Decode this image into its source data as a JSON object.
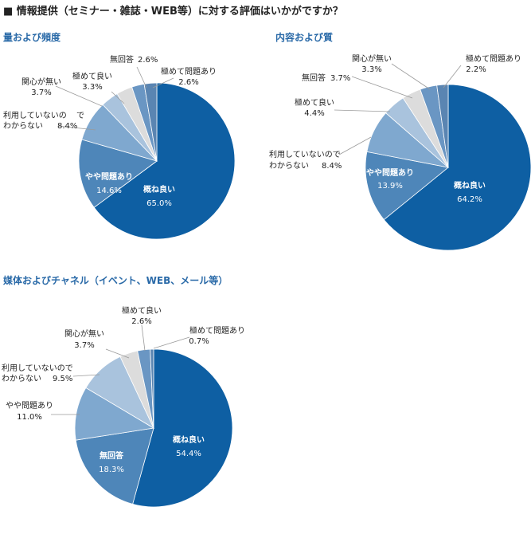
{
  "page_title": "■ 情報提供（セミナー・雑誌・WEB等）に対する評価はいかがですか？",
  "colors": {
    "dark_blue": "#0e5fa3",
    "medium_blue": "#4e86b9",
    "light_blue": "#7fa8cf",
    "pale_blue": "#a9c3dd",
    "light_gray": "#dcdcdc",
    "steel_blue": "#6a96c3",
    "slate_blue": "#5a85b2",
    "title_blue": "#2a6aa8"
  },
  "chart_data": [
    {
      "type": "pie",
      "title": "量および頻度",
      "slices": [
        {
          "name": "概ね良い",
          "value": 65.0,
          "label": "65.0%",
          "color": "#0e5fa3"
        },
        {
          "name": "やや問題あり",
          "value": 14.6,
          "label": "14.6%",
          "color": "#4e86b9"
        },
        {
          "name": "利用していないのでわからない",
          "value": 8.4,
          "label": "8.4%",
          "color": "#7fa8cf"
        },
        {
          "name": "関心が無い",
          "value": 3.7,
          "label": "3.7%",
          "color": "#a9c3dd"
        },
        {
          "name": "極めて良い",
          "value": 3.3,
          "label": "3.3%",
          "color": "#dcdcdc"
        },
        {
          "name": "無回答",
          "value": 2.6,
          "label": "2.6%",
          "color": "#6a96c3"
        },
        {
          "name": "極めて問題あり",
          "value": 2.6,
          "label": "2.6%",
          "color": "#5a85b2"
        }
      ]
    },
    {
      "type": "pie",
      "title": "内容および質",
      "slices": [
        {
          "name": "概ね良い",
          "value": 64.2,
          "label": "64.2%",
          "color": "#0e5fa3"
        },
        {
          "name": "やや問題あり",
          "value": 13.9,
          "label": "13.9%",
          "color": "#4e86b9"
        },
        {
          "name": "利用していないのでわからない",
          "value": 8.4,
          "label": "8.4%",
          "color": "#7fa8cf"
        },
        {
          "name": "極めて良い",
          "value": 4.4,
          "label": "4.4%",
          "color": "#a9c3dd"
        },
        {
          "name": "無回答",
          "value": 3.7,
          "label": "3.7%",
          "color": "#dcdcdc"
        },
        {
          "name": "関心が無い",
          "value": 3.3,
          "label": "3.3%",
          "color": "#6a96c3"
        },
        {
          "name": "極めて問題あり",
          "value": 2.2,
          "label": "2.2%",
          "color": "#5a85b2"
        }
      ]
    },
    {
      "type": "pie",
      "title": "媒体およびチャネル（イベント、WEB、メール等）",
      "slices": [
        {
          "name": "概ね良い",
          "value": 54.4,
          "label": "54.4%",
          "color": "#0e5fa3"
        },
        {
          "name": "無回答",
          "value": 18.3,
          "label": "18.3%",
          "color": "#4e86b9"
        },
        {
          "name": "やや問題あり",
          "value": 11.0,
          "label": "11.0%",
          "color": "#7fa8cf"
        },
        {
          "name": "利用していないのでわからない",
          "value": 9.5,
          "label": "9.5%",
          "color": "#a9c3dd"
        },
        {
          "name": "関心が無い",
          "value": 3.7,
          "label": "3.7%",
          "color": "#dcdcdc"
        },
        {
          "name": "極めて良い",
          "value": 2.6,
          "label": "2.6%",
          "color": "#6a96c3"
        },
        {
          "name": "極めて問題あり",
          "value": 0.7,
          "label": "0.7%",
          "color": "#5a85b2"
        }
      ]
    }
  ],
  "labels": {
    "c1": {
      "gaiyoi": "概ね良い",
      "yaya_l1": "やや問題あり",
      "riyou_l1": "利用していないの",
      "riyou_l2": "で",
      "riyou_l3": "わからない",
      "kanshin": "関心が無い",
      "kiwameyoi": "極めて良い",
      "mukaitou": "無回答",
      "kiwame_mondai": "極めて問題あり"
    },
    "c2": {
      "gaiyoi": "概ね良い",
      "yaya": "やや問題あり",
      "riyou_l1": "利用していないので",
      "riyou_l2": "わからない",
      "kiwameyoi": "極めて良い",
      "mukaitou": "無回答",
      "kanshin": "関心が無い",
      "kiwame_mondai": "極めて問題あり"
    },
    "c3": {
      "gaiyoi": "概ね良い",
      "mukaitou": "無回答",
      "yaya": "やや問題あり",
      "riyou_l1": "利用していないので",
      "riyou_l2": "わからない",
      "kanshin": "関心が無い",
      "kiwameyoi": "極めて良い",
      "kiwame_mondai": "極めて問題あり"
    }
  }
}
